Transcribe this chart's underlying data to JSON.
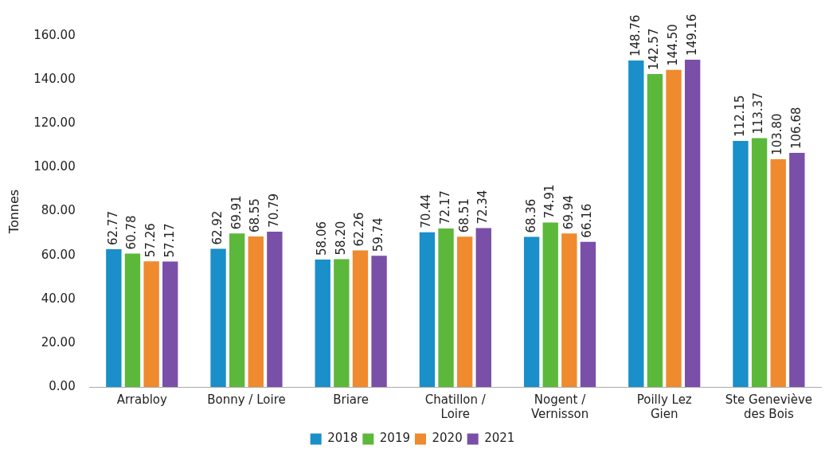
{
  "chart_data": {
    "type": "bar",
    "ylabel": "Tonnes",
    "categories": [
      "Arrabloy",
      "Bonny / Loire",
      "Briare",
      "Chatillon / Loire",
      "Nogent / Vernisson",
      "Poilly Lez Gien",
      "Ste Geneviève des Bois"
    ],
    "series": [
      {
        "name": "2018",
        "color": "#1a8fc9",
        "values": [
          62.77,
          62.92,
          58.06,
          70.44,
          68.36,
          148.76,
          112.15
        ],
        "value_labels": [
          "62.77",
          "62.92",
          "58.06",
          "70.44",
          "68.36",
          "148.76",
          "112.15"
        ]
      },
      {
        "name": "2019",
        "color": "#5cb83a",
        "values": [
          60.78,
          69.91,
          58.2,
          72.17,
          74.91,
          142.57,
          113.37
        ],
        "value_labels": [
          "60.78",
          "69.91",
          "58.20",
          "72.17",
          "74.91",
          "142.57",
          "113.37"
        ]
      },
      {
        "name": "2020",
        "color": "#f08a2e",
        "values": [
          57.26,
          68.55,
          62.26,
          68.51,
          69.94,
          144.5,
          103.8
        ],
        "value_labels": [
          "57.26",
          "68.55",
          "62.26",
          "68.51",
          "69.94",
          "144.50",
          "103.80"
        ]
      },
      {
        "name": "2021",
        "color": "#7a4fa8",
        "values": [
          57.17,
          70.79,
          59.74,
          72.34,
          66.16,
          149.16,
          106.68
        ],
        "value_labels": [
          "57.17",
          "70.79",
          "59.74",
          "72.34",
          "66.16",
          "149.16",
          "106.68"
        ]
      }
    ],
    "ylim": [
      0,
      160
    ],
    "yticks": [
      {
        "value": 0,
        "label": "0.00"
      },
      {
        "value": 20,
        "label": "20.00"
      },
      {
        "value": 40,
        "label": "40.00"
      },
      {
        "value": 60,
        "label": "60.00"
      },
      {
        "value": 80,
        "label": "80.00"
      },
      {
        "value": 100,
        "label": "100.00"
      },
      {
        "value": 120,
        "label": "120.00"
      },
      {
        "value": 140,
        "label": "140.00"
      },
      {
        "value": 160,
        "label": "160.00"
      }
    ],
    "grid": false,
    "legend": "bottom"
  }
}
